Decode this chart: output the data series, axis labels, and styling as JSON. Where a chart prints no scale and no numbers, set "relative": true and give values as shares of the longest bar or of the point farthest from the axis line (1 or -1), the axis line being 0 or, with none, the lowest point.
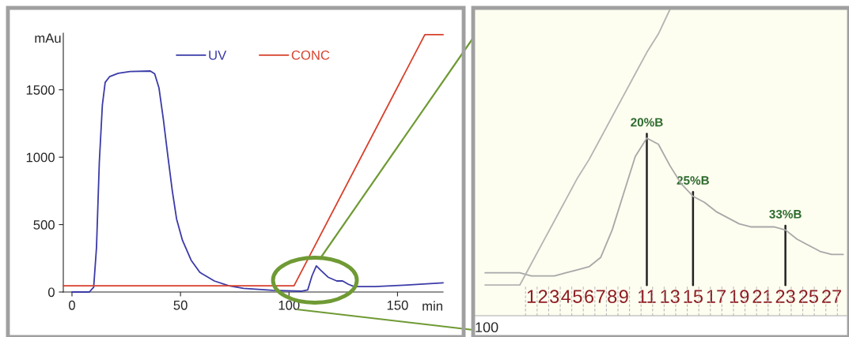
{
  "chart_data": [
    {
      "type": "line",
      "ylabel": "mAu",
      "xlabel": "min",
      "xlim": [
        -4,
        171
      ],
      "ylim": [
        0,
        1920
      ],
      "xticks": [
        0,
        50,
        100,
        150
      ],
      "yticks": [
        0,
        500,
        1000,
        1500
      ],
      "legend": "top",
      "grid": false,
      "series": [
        {
          "name": "UV",
          "color": "#3b3ba8",
          "x": [
            0,
            8,
            10,
            11.3,
            12.6,
            14,
            15.3,
            17.3,
            21.3,
            26.7,
            36.1,
            38.1,
            40.1,
            42.1,
            44.2,
            46.2,
            48.2,
            50.9,
            54.9,
            58.9,
            65.6,
            72.3,
            79.1,
            92.5,
            105.9,
            108.6,
            110.6,
            112.6,
            114.6,
            118,
            122,
            124.7,
            127.4,
            130,
            139.5,
            152.9,
            171
          ],
          "values": [
            0,
            0,
            36,
            331,
            964,
            1386,
            1555,
            1597,
            1622,
            1635,
            1639,
            1618,
            1513,
            1281,
            1006,
            753,
            542,
            384,
            236,
            146,
            82,
            46,
            27,
            13,
            6,
            15,
            120,
            194,
            162,
            110,
            82,
            82,
            57,
            40,
            40,
            51,
            68
          ]
        },
        {
          "name": "CONC",
          "color": "#d8402c",
          "x": [
            -4,
            102.3,
            162.6,
            171
          ],
          "values": [
            46,
            46,
            1909,
            1909
          ]
        }
      ]
    },
    {
      "type": "line",
      "relative": true,
      "categories": [
        null,
        null,
        null,
        null,
        "1",
        "2",
        "3",
        "4",
        "5",
        "6",
        "7",
        "8",
        "9",
        null,
        "11",
        null,
        "13",
        null,
        "15",
        null,
        "17",
        null,
        "19",
        null,
        "21",
        null,
        "23",
        null,
        "25",
        null,
        "27",
        null
      ],
      "series": [
        {
          "color": "#a8a8a8",
          "values": [
            0.14,
            0.14,
            0.14,
            0.14,
            0.13,
            0.13,
            0.13,
            0.14,
            0.15,
            0.16,
            0.19,
            0.28,
            0.4,
            0.52,
            0.58,
            0.56,
            0.49,
            0.43,
            0.39,
            0.37,
            0.34,
            0.32,
            0.3,
            0.29,
            0.29,
            0.29,
            0.28,
            0.25,
            0.23,
            0.21,
            0.2,
            0.2
          ]
        },
        {
          "color": "#b4b4b4",
          "values": [
            0.1,
            0.1,
            0.1,
            0.1,
            0.17,
            0.24,
            0.31,
            0.38,
            0.45,
            0.51,
            0.58,
            0.65,
            0.72,
            0.79,
            0.86,
            0.92,
            1,
            null,
            null,
            null,
            null,
            null,
            null,
            null,
            null,
            null,
            null,
            null,
            null,
            null,
            null,
            null
          ]
        }
      ],
      "annotations": [
        {
          "text": "20%B",
          "x": "11",
          "y": 0.58
        },
        {
          "text": "25%B",
          "x": "15",
          "y": 0.39
        },
        {
          "text": "33%B",
          "x": "23",
          "y": 0.28
        },
        "100"
      ]
    }
  ]
}
